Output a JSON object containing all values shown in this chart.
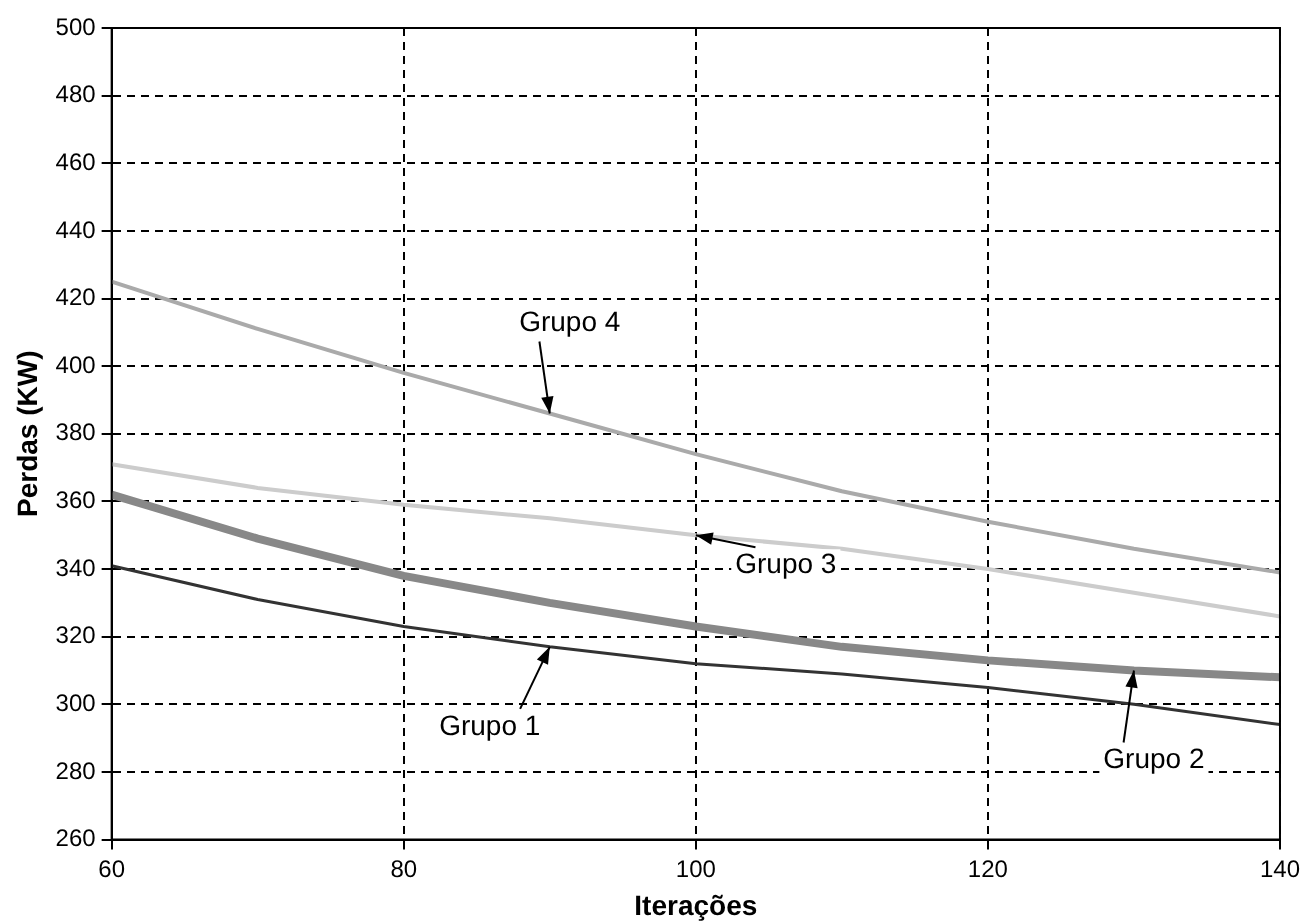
{
  "chart_data": {
    "type": "line",
    "xlabel": "Iterações",
    "ylabel": "Perdas (KW)",
    "x": [
      60,
      70,
      80,
      90,
      100,
      110,
      120,
      130,
      140
    ],
    "series": [
      {
        "name": "Grupo 1",
        "color": "#333333",
        "values": [
          341,
          331,
          323,
          317,
          312,
          309,
          305,
          300,
          294
        ]
      },
      {
        "name": "Grupo 2",
        "color": "#888888",
        "values": [
          362,
          349,
          338,
          330,
          323,
          317,
          313,
          310,
          308
        ]
      },
      {
        "name": "Grupo 3",
        "color": "#cccccc",
        "values": [
          371,
          364,
          359,
          355,
          350,
          346,
          340,
          333,
          326
        ]
      },
      {
        "name": "Grupo 4",
        "color": "#aaaaaa",
        "values": [
          425,
          411,
          398,
          386,
          374,
          363,
          354,
          346,
          339
        ]
      }
    ],
    "xlim": [
      60,
      140
    ],
    "xticks": [
      60,
      80,
      100,
      120,
      140
    ],
    "ylim": [
      260,
      500
    ],
    "yticks": [
      260,
      280,
      300,
      320,
      340,
      360,
      380,
      400,
      420,
      440,
      460,
      480,
      500
    ],
    "grid": true,
    "legend": false,
    "marker": "none",
    "line_style": "solid"
  }
}
